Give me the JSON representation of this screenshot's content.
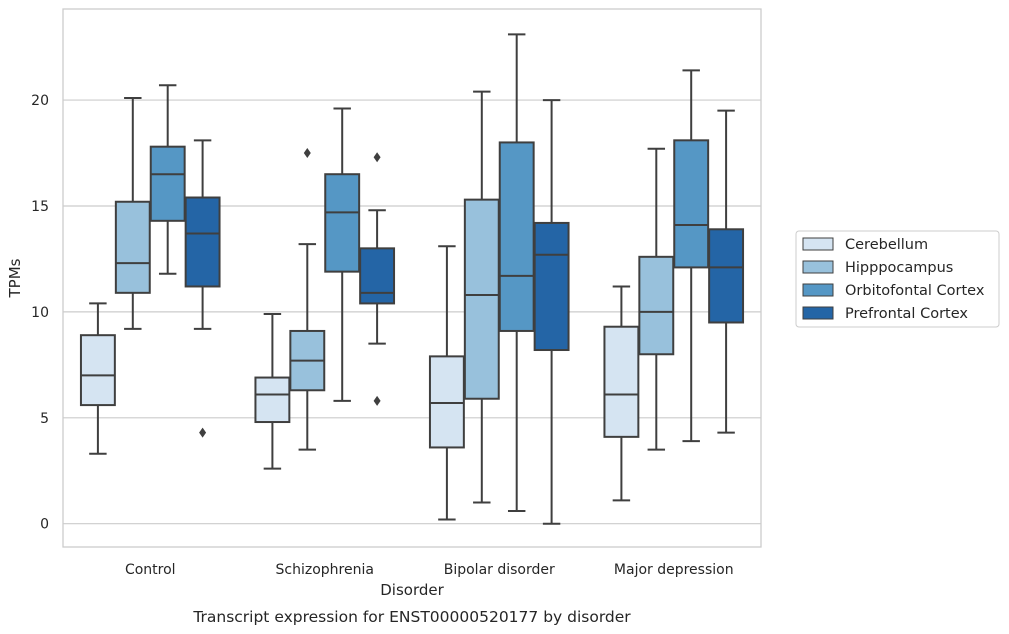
{
  "chart_data": {
    "type": "box",
    "title": "",
    "xlabel": "Disorder",
    "ylabel": "TPMs",
    "caption": "Transcript expression for ENST00000520177 by disorder",
    "ylim": [
      -1.1,
      24.3
    ],
    "yticks": [
      0,
      5,
      10,
      15,
      20
    ],
    "grid": "horizontal",
    "legend_position": "right",
    "categories": [
      "Control",
      "Schizophrenia",
      "Bipolar disorder",
      "Major depression"
    ],
    "series": [
      {
        "name": "Cerebellum",
        "color": "#d5e4f2",
        "boxes": [
          {
            "whisker_low": 3.3,
            "q1": 5.6,
            "median": 7.0,
            "q3": 8.9,
            "whisker_high": 10.4,
            "outliers": []
          },
          {
            "whisker_low": 2.6,
            "q1": 4.8,
            "median": 6.1,
            "q3": 6.9,
            "whisker_high": 9.9,
            "outliers": []
          },
          {
            "whisker_low": 0.2,
            "q1": 3.6,
            "median": 5.7,
            "q3": 7.9,
            "whisker_high": 13.1,
            "outliers": []
          },
          {
            "whisker_low": 1.1,
            "q1": 4.1,
            "median": 6.1,
            "q3": 9.3,
            "whisker_high": 11.2,
            "outliers": []
          }
        ]
      },
      {
        "name": "Hipppocampus",
        "color": "#98c1dc",
        "boxes": [
          {
            "whisker_low": 9.2,
            "q1": 10.9,
            "median": 12.3,
            "q3": 15.2,
            "whisker_high": 20.1,
            "outliers": []
          },
          {
            "whisker_low": 3.5,
            "q1": 6.3,
            "median": 7.7,
            "q3": 9.1,
            "whisker_high": 13.2,
            "outliers": [
              17.5
            ]
          },
          {
            "whisker_low": 1.0,
            "q1": 5.9,
            "median": 10.8,
            "q3": 15.3,
            "whisker_high": 20.4,
            "outliers": []
          },
          {
            "whisker_low": 3.5,
            "q1": 8.0,
            "median": 10.0,
            "q3": 12.6,
            "whisker_high": 17.7,
            "outliers": []
          }
        ]
      },
      {
        "name": "Orbitofontal Cortex",
        "color": "#5597c5",
        "boxes": [
          {
            "whisker_low": 11.8,
            "q1": 14.3,
            "median": 16.5,
            "q3": 17.8,
            "whisker_high": 20.7,
            "outliers": []
          },
          {
            "whisker_low": 5.8,
            "q1": 11.9,
            "median": 14.7,
            "q3": 16.5,
            "whisker_high": 19.6,
            "outliers": []
          },
          {
            "whisker_low": 0.6,
            "q1": 9.1,
            "median": 11.7,
            "q3": 18.0,
            "whisker_high": 23.1,
            "outliers": []
          },
          {
            "whisker_low": 3.9,
            "q1": 12.1,
            "median": 14.1,
            "q3": 18.1,
            "whisker_high": 21.4,
            "outliers": []
          }
        ]
      },
      {
        "name": "Prefrontal Cortex",
        "color": "#2465a6",
        "boxes": [
          {
            "whisker_low": 9.2,
            "q1": 11.2,
            "median": 13.7,
            "q3": 15.4,
            "whisker_high": 18.1,
            "outliers": [
              4.3
            ]
          },
          {
            "whisker_low": 8.5,
            "q1": 10.4,
            "median": 10.9,
            "q3": 13.0,
            "whisker_high": 14.8,
            "outliers": [
              17.3,
              5.8
            ]
          },
          {
            "whisker_low": 0.0,
            "q1": 8.2,
            "median": 12.7,
            "q3": 14.2,
            "whisker_high": 20.0,
            "outliers": []
          },
          {
            "whisker_low": 4.3,
            "q1": 9.5,
            "median": 12.1,
            "q3": 13.9,
            "whisker_high": 19.5,
            "outliers": []
          }
        ]
      }
    ]
  }
}
